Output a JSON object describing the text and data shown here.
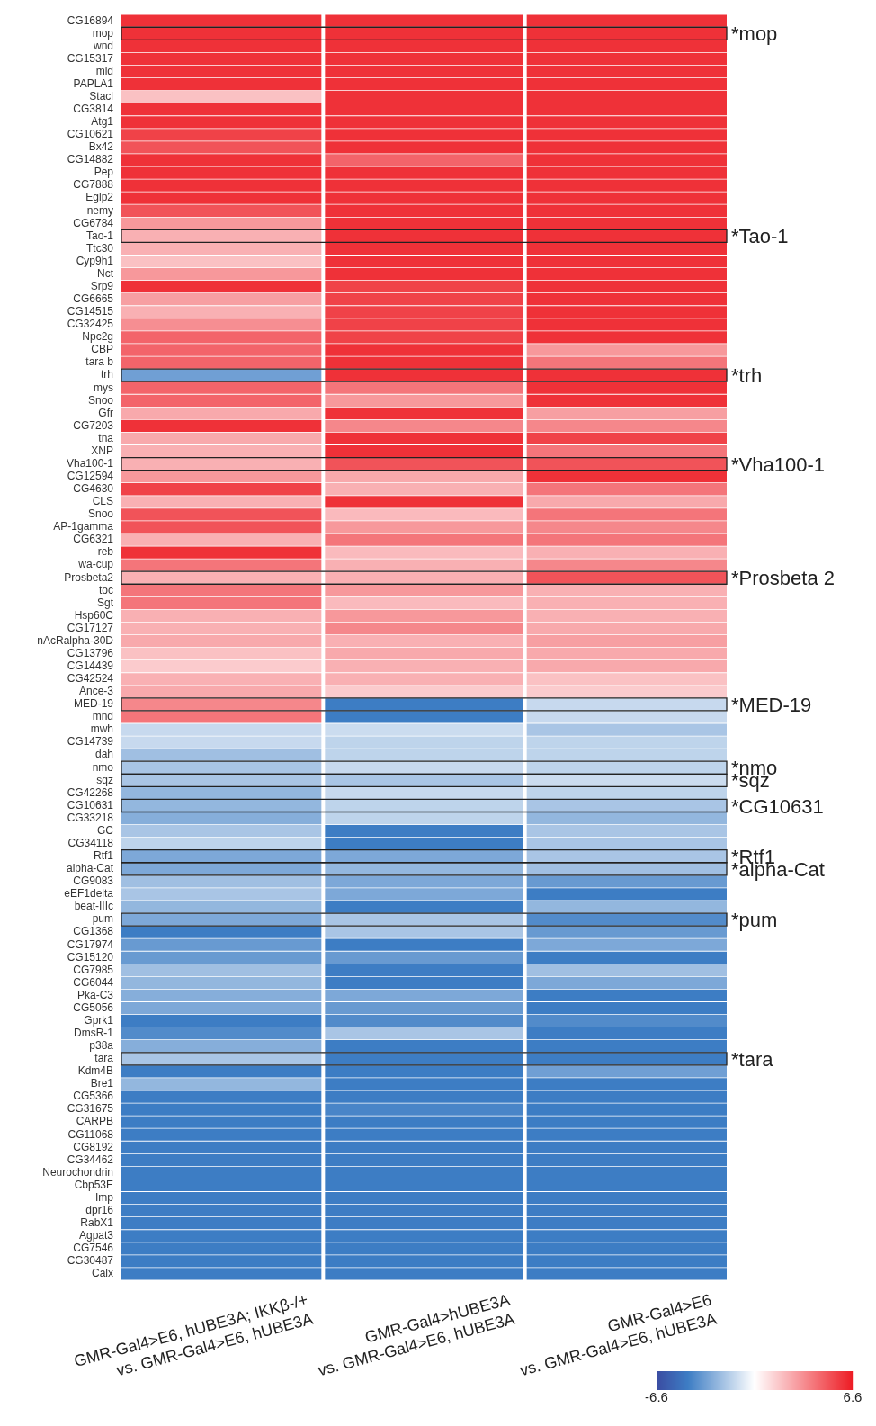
{
  "chart_data": {
    "type": "heatmap",
    "categories": [
      "GMR-Gal4>E6, hUBE3A; IKKβ-/+\nvs. GMR-Gal4>E6, hUBE3A",
      "GMR-Gal4>hUBE3A\nvs. GMR-Gal4>E6, hUBE3A",
      "GMR-Gal4>E6\nvs. GMR-Gal4>E6, hUBE3A"
    ],
    "y_categories": [
      "CG16894",
      "mop",
      "wnd",
      "CG15317",
      "mld",
      "PAPLA1",
      "Stacl",
      "CG3814",
      "Atg1",
      "CG10621",
      "Bx42",
      "CG14882",
      "Pep",
      "CG7888",
      "Eglp2",
      "nemy",
      "CG6784",
      "Tao-1",
      "Ttc30",
      "Cyp9h1",
      "Nct",
      "Srp9",
      "CG6665",
      "CG14515",
      "CG32425",
      "Npc2g",
      "CBP",
      "tara b",
      "trh",
      "mys",
      "Snoo",
      "Gfr",
      "CG7203",
      "tna",
      "XNP",
      "Vha100-1",
      "CG12594",
      "CG4630",
      "CLS",
      "Snoo",
      "AP-1gamma",
      "CG6321",
      "reb",
      "wa-cup",
      "Prosbeta2",
      "toc",
      "Sgt",
      "Hsp60C",
      "CG17127",
      "nAcRalpha-30D",
      "CG13796",
      "CG14439",
      "CG42524",
      "Ance-3",
      "MED-19",
      "mnd",
      "mwh",
      "CG14739",
      "dah",
      "nmo",
      "sqz",
      "CG42268",
      "CG10631",
      "CG33218",
      "GC",
      "CG34118",
      "Rtf1",
      "alpha-Cat",
      "CG9083",
      "eEF1delta",
      "beat-IIIc",
      "pum",
      "CG1368",
      "CG17974",
      "CG15120",
      "CG7985",
      "CG6044",
      "Pka-C3",
      "CG5056",
      "Gprk1",
      "DmsR-1",
      "p38a",
      "tara",
      "Kdm4B",
      "Bre1",
      "CG5366",
      "CG31675",
      "CARPB",
      "CG11068",
      "CG8192",
      "CG34462",
      "Neurochondrin",
      "Cbp53E",
      "Imp",
      "dpr16",
      "RabX1",
      "Agpat3",
      "CG7546",
      "CG30487",
      "Calx"
    ],
    "cells": [
      [
        6,
        6,
        6
      ],
      [
        6,
        6,
        6
      ],
      [
        6,
        6,
        6
      ],
      [
        6,
        6,
        6
      ],
      [
        6,
        6,
        6
      ],
      [
        6,
        6,
        6
      ],
      [
        1.8,
        6,
        6
      ],
      [
        6,
        6,
        6
      ],
      [
        6,
        6,
        6
      ],
      [
        5.5,
        6,
        6
      ],
      [
        5,
        6,
        6
      ],
      [
        6,
        4.5,
        6
      ],
      [
        6,
        6,
        6
      ],
      [
        6,
        6,
        6
      ],
      [
        6,
        6,
        6
      ],
      [
        5,
        6,
        6
      ],
      [
        3,
        6,
        6
      ],
      [
        2.3,
        6,
        6
      ],
      [
        2.3,
        6,
        6
      ],
      [
        1.8,
        6,
        6
      ],
      [
        3,
        6,
        6
      ],
      [
        6,
        5.5,
        6
      ],
      [
        2.8,
        5.5,
        6
      ],
      [
        2.3,
        5.5,
        6
      ],
      [
        3.3,
        5.5,
        6
      ],
      [
        4.5,
        5.5,
        6
      ],
      [
        4.5,
        6,
        3
      ],
      [
        4.5,
        6,
        4
      ],
      [
        -3.3,
        6,
        6
      ],
      [
        4.5,
        4,
        6
      ],
      [
        4.5,
        3,
        6
      ],
      [
        2.5,
        6,
        2.8
      ],
      [
        6,
        3.5,
        3.5
      ],
      [
        2.5,
        6,
        5.5
      ],
      [
        2.3,
        6,
        4
      ],
      [
        2.3,
        5,
        5
      ],
      [
        3,
        2.5,
        6
      ],
      [
        5.5,
        2.3,
        4
      ],
      [
        2.3,
        6,
        2.5
      ],
      [
        5,
        2,
        4
      ],
      [
        5,
        3,
        3.5
      ],
      [
        2.3,
        4,
        4
      ],
      [
        6,
        2,
        2.3
      ],
      [
        4,
        2.3,
        3.5
      ],
      [
        2.3,
        2.3,
        5
      ],
      [
        4,
        3,
        2.3
      ],
      [
        4,
        2,
        2.3
      ],
      [
        2.3,
        3,
        2.3
      ],
      [
        2.3,
        3.5,
        2.5
      ],
      [
        2.5,
        2.3,
        2.8
      ],
      [
        1.8,
        2.5,
        2.5
      ],
      [
        1.5,
        2.3,
        2.5
      ],
      [
        2.3,
        2.3,
        1.8
      ],
      [
        2.5,
        1.5,
        1.5
      ],
      [
        3.5,
        -4.5,
        -1.3
      ],
      [
        4,
        -4.5,
        -1.3
      ],
      [
        -1.3,
        -1.2,
        -2
      ],
      [
        -1.3,
        -1.5,
        -1.5
      ],
      [
        -2.2,
        -1.5,
        -1.5
      ],
      [
        -2,
        -1.3,
        -1.5
      ],
      [
        -2,
        -2,
        -1.2
      ],
      [
        -2.5,
        -1.3,
        -1.5
      ],
      [
        -2.5,
        -1.5,
        -2
      ],
      [
        -2.8,
        -1.5,
        -2.5
      ],
      [
        -2,
        -4.5,
        -2
      ],
      [
        -1.5,
        -4.5,
        -2
      ],
      [
        -3,
        -3,
        -2
      ],
      [
        -3,
        -2.5,
        -2.2
      ],
      [
        -2.2,
        -3,
        -3.5
      ],
      [
        -2,
        -3,
        -4.5
      ],
      [
        -2.5,
        -4.5,
        -2.5
      ],
      [
        -3,
        -2,
        -4
      ],
      [
        -4.5,
        -2,
        -3.5
      ],
      [
        -3.5,
        -4.5,
        -3
      ],
      [
        -3.5,
        -3.5,
        -4.5
      ],
      [
        -2.2,
        -4.5,
        -2.2
      ],
      [
        -2.5,
        -4.5,
        -3
      ],
      [
        -2.8,
        -3,
        -4.5
      ],
      [
        -3,
        -3.5,
        -4.5
      ],
      [
        -4.5,
        -4,
        -4
      ],
      [
        -4,
        -2,
        -4.5
      ],
      [
        -2.8,
        -4.5,
        -4.5
      ],
      [
        -2,
        -4.5,
        -4.5
      ],
      [
        -4.5,
        -4.5,
        -3.3
      ],
      [
        -2.5,
        -4.5,
        -4.5
      ],
      [
        -4.5,
        -4.5,
        -4.5
      ],
      [
        -4.5,
        -4.2,
        -4.5
      ],
      [
        -4.5,
        -4.5,
        -4.5
      ],
      [
        -4.5,
        -4.5,
        -4.5
      ],
      [
        -4.5,
        -4.5,
        -4.5
      ],
      [
        -4.5,
        -4.5,
        -4.5
      ],
      [
        -4.5,
        -4.5,
        -4.5
      ],
      [
        -4.5,
        -4.5,
        -4.5
      ],
      [
        -4.5,
        -4.5,
        -4.5
      ],
      [
        -4.5,
        -4.5,
        -4.5
      ],
      [
        -4.5,
        -4.5,
        -4.5
      ],
      [
        -4.5,
        -4.5,
        -4.5
      ],
      [
        -4.5,
        -4.5,
        -4.5
      ],
      [
        -4.5,
        -4.5,
        -4.5
      ],
      [
        -4.5,
        -4.5,
        -4.5
      ]
    ],
    "clim": [
      -6.6,
      6.6
    ],
    "cticks": [
      -6.6,
      6.6
    ],
    "y2_categories": [
      null,
      "*mop",
      null,
      null,
      null,
      null,
      null,
      null,
      null,
      null,
      null,
      null,
      null,
      null,
      null,
      null,
      null,
      "*Tao-1",
      null,
      null,
      null,
      null,
      null,
      null,
      null,
      null,
      null,
      null,
      "*trh",
      null,
      null,
      null,
      null,
      null,
      null,
      "*Vha100-1",
      null,
      null,
      null,
      null,
      null,
      null,
      null,
      null,
      "*Prosbeta 2",
      null,
      null,
      null,
      null,
      null,
      null,
      null,
      null,
      null,
      "*MED-19",
      null,
      null,
      null,
      null,
      "*nmo",
      "*sqz",
      null,
      "*CG10631",
      null,
      null,
      null,
      "*Rtf1",
      "*alpha-Cat",
      null,
      null,
      null,
      "*pum",
      null,
      null,
      null,
      null,
      null,
      null,
      null,
      null,
      null,
      null,
      "*tara",
      null,
      null,
      null,
      null,
      null,
      null,
      null,
      null,
      null,
      null,
      null,
      null,
      null,
      null,
      null,
      null,
      null
    ]
  }
}
